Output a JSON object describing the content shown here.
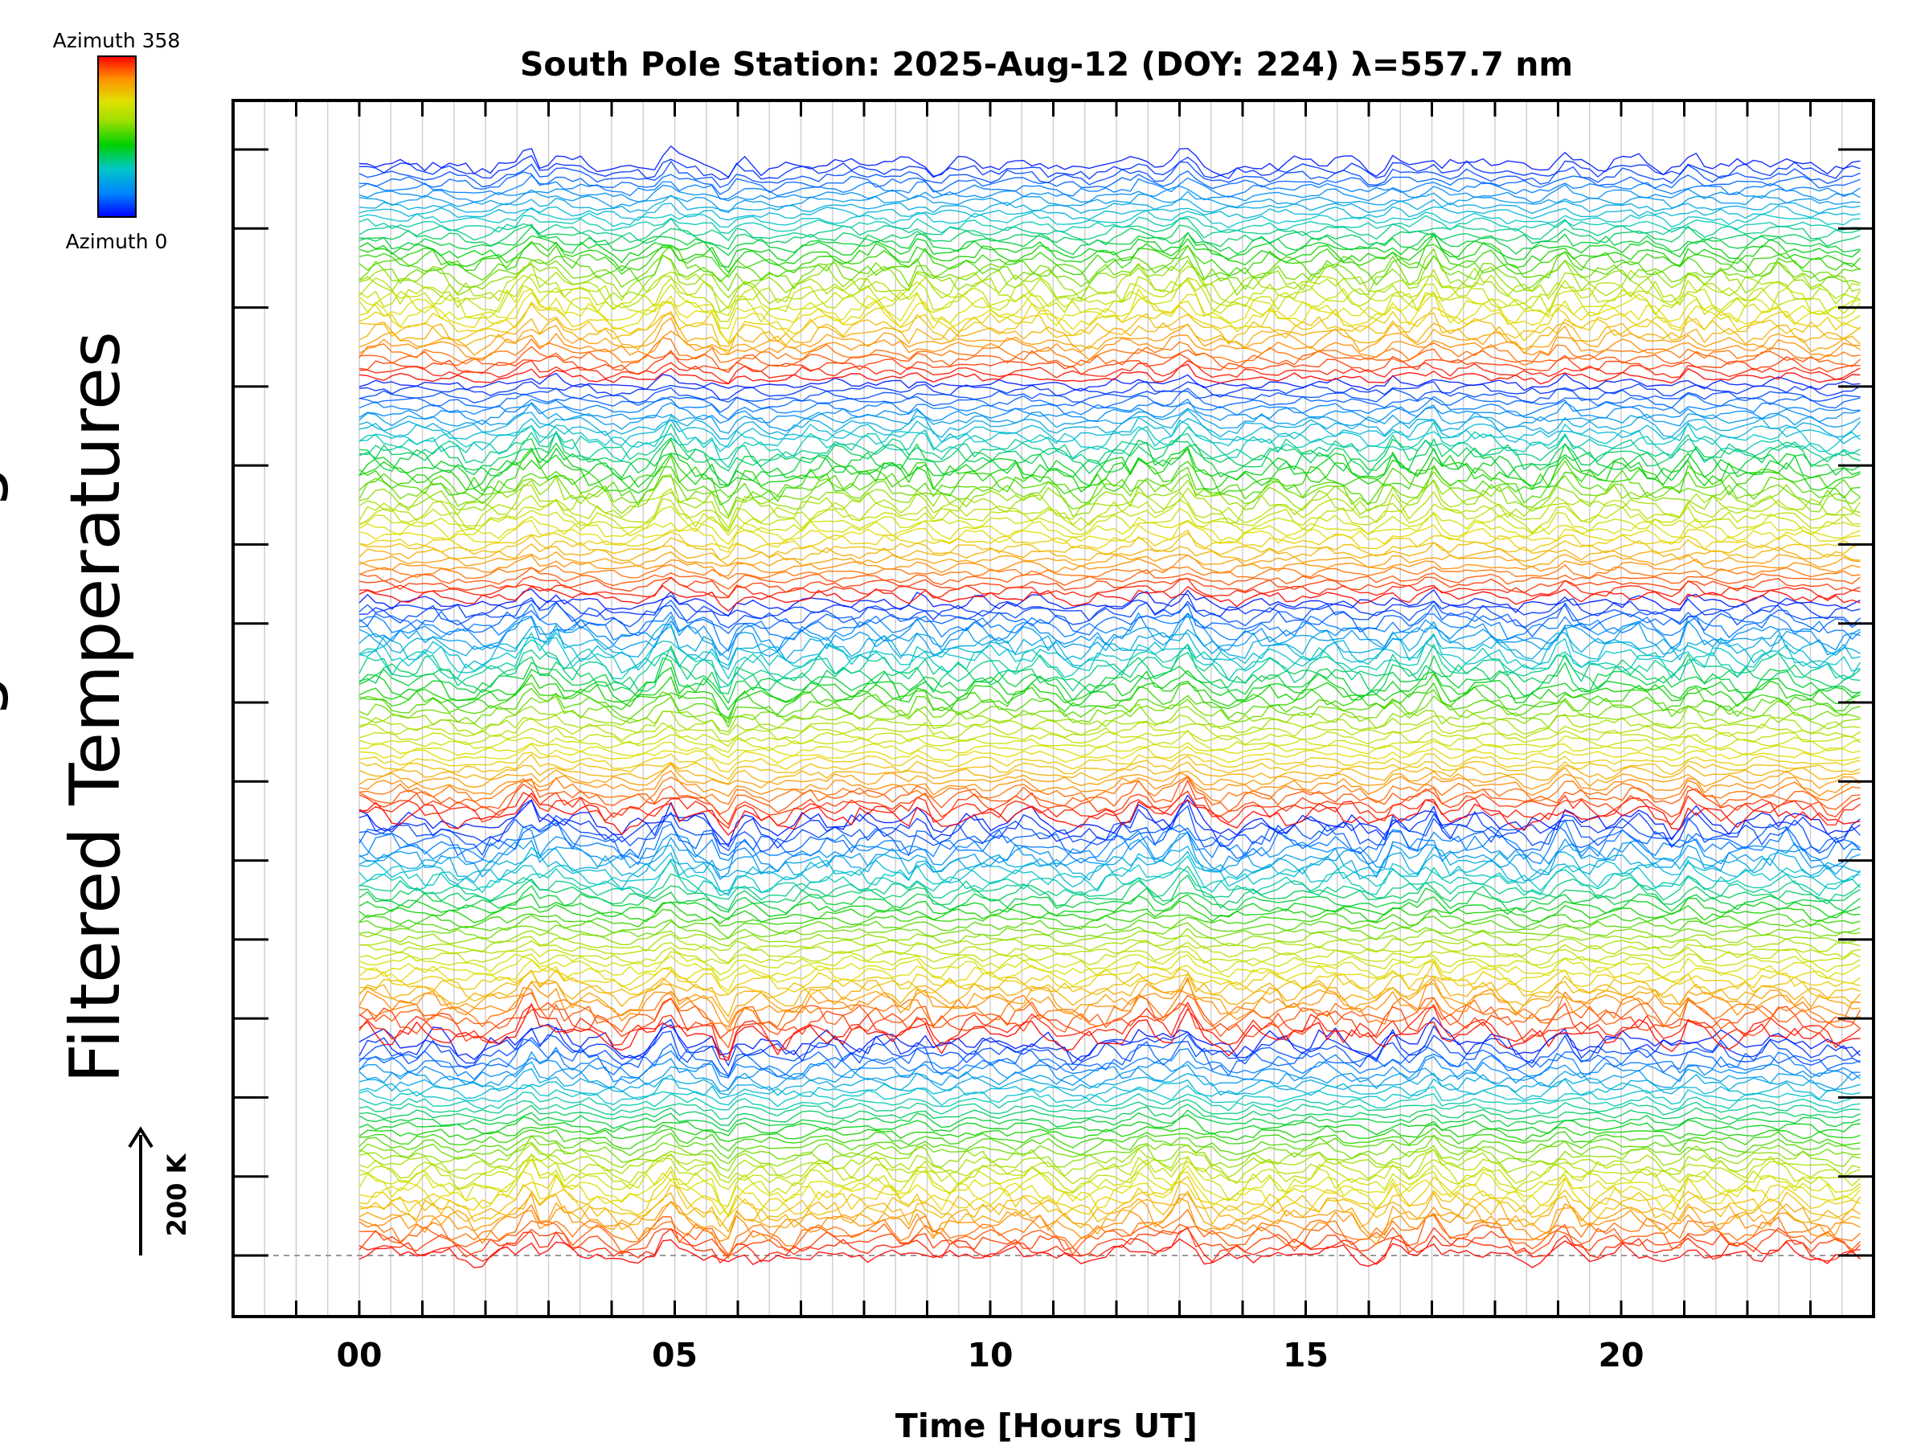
{
  "chart_data": {
    "type": "line",
    "title": "South Pole Station: 2025-Aug-12 (DOY: 224) λ=557.7 nm",
    "xlabel": "Time [Hours UT]",
    "ylabel_visible": "Filtered Temperatures",
    "ylabel_partial": "g",
    "x_tick_labels": [
      "00",
      "05",
      "10",
      "15",
      "20"
    ],
    "x_tick_values": [
      0,
      5,
      10,
      15,
      20
    ],
    "xlim": [
      -2,
      24
    ],
    "x_data_range": [
      0,
      23.9
    ],
    "y_scale_bar": {
      "label": "200 K",
      "value": 200
    },
    "n_y_major_ticks": 15,
    "grid": true,
    "series_description": "stacked filtered-temperature traces, one per azimuth bin, coloured from blue to red by azimuth",
    "colorbar": {
      "top_label": "Azimuth 358",
      "bottom_label": "Azimuth 0",
      "min": 0,
      "max": 358,
      "colormap": [
        "#0000ff",
        "#0080ff",
        "#00c8c8",
        "#00d000",
        "#a0e000",
        "#e0e000",
        "#ff9000",
        "#ff0000"
      ]
    },
    "event_spikes_hours": [
      2.7,
      3.1,
      4.9,
      5.8,
      8.9,
      12.4,
      13.1,
      16.4,
      17.0,
      19.1,
      21.1
    ],
    "axis_color": "#000000",
    "gridline_color": "#d0d0d0",
    "baseline_color": "#999999"
  }
}
